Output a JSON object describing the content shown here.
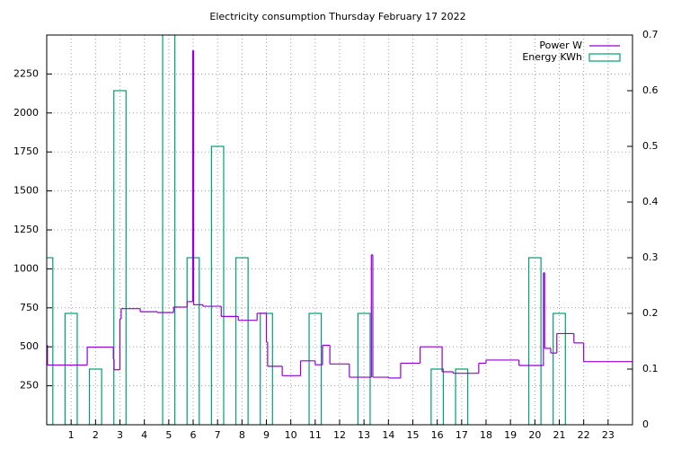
{
  "chart_data": {
    "type": "step-box",
    "title": "Electricity consumption Thursday February 17 2022",
    "xlim": [
      0,
      24
    ],
    "xticks": [
      1,
      2,
      3,
      4,
      5,
      6,
      7,
      8,
      9,
      10,
      11,
      12,
      13,
      14,
      15,
      16,
      17,
      18,
      19,
      20,
      21,
      22,
      23
    ],
    "ylim": [
      0,
      2500
    ],
    "yticks": [
      250,
      500,
      750,
      1000,
      1250,
      1500,
      1750,
      2000,
      2250
    ],
    "y2lim": [
      0,
      0.7
    ],
    "y2ticks": [
      0,
      0.1,
      0.2,
      0.3,
      0.4,
      0.5,
      0.6,
      0.7
    ],
    "grid": true,
    "legend": "top-right",
    "series": [
      {
        "name": "Power W",
        "color": "#9400d3",
        "style": "steps",
        "x": [
          0,
          0.03,
          1.66,
          2.73,
          2.76,
          3.0,
          3.05,
          3.83,
          4.53,
          5.2,
          5.75,
          5.98,
          6.02,
          6.4,
          7.15,
          7.85,
          8.62,
          9.0,
          9.05,
          9.65,
          10.4,
          11.0,
          11.3,
          11.6,
          12.4,
          13.3,
          13.36,
          14.0,
          14.5,
          15.3,
          16.2,
          16.65,
          17.7,
          18.0,
          19.35,
          20.35,
          20.4,
          20.65,
          20.9,
          21.6,
          22.0
        ],
        "values": [
          510,
          383,
          498,
          420,
          353,
          680,
          745,
          725,
          720,
          755,
          790,
          2400,
          770,
          760,
          695,
          670,
          715,
          530,
          375,
          315,
          410,
          385,
          510,
          390,
          305,
          1090,
          305,
          300,
          395,
          500,
          340,
          330,
          395,
          415,
          380,
          975,
          490,
          460,
          585,
          525,
          405
        ]
      },
      {
        "name": "Energy KWh",
        "color": "#009e73",
        "style": "boxes",
        "axis": "y2",
        "box_width": 0.5,
        "x": [
          0,
          1,
          2,
          3,
          4,
          5,
          6,
          7,
          8,
          9,
          10,
          11,
          12,
          13,
          14,
          15,
          16,
          17,
          18,
          19,
          20,
          21,
          22,
          23
        ],
        "values": [
          0.3,
          0.2,
          0.1,
          0.6,
          0,
          0.8,
          0.3,
          0.5,
          0.3,
          0.2,
          0,
          0.2,
          0,
          0.2,
          0,
          0,
          0.1,
          0.1,
          0,
          0,
          0.3,
          0.2,
          0,
          0
        ]
      }
    ]
  }
}
